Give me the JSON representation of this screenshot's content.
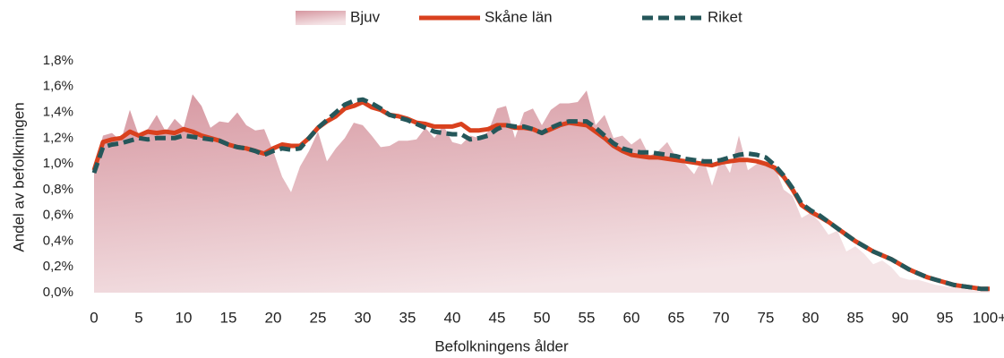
{
  "chart_data": {
    "type": "line",
    "x_label": "Befolkningens ålder",
    "y_label": "Andel av befolkningen",
    "x": [
      0,
      1,
      2,
      3,
      4,
      5,
      6,
      7,
      8,
      9,
      10,
      11,
      12,
      13,
      14,
      15,
      16,
      17,
      18,
      19,
      20,
      21,
      22,
      23,
      24,
      25,
      26,
      27,
      28,
      29,
      30,
      31,
      32,
      33,
      34,
      35,
      36,
      37,
      38,
      39,
      40,
      41,
      42,
      43,
      44,
      45,
      46,
      47,
      48,
      49,
      50,
      51,
      52,
      53,
      54,
      55,
      56,
      57,
      58,
      59,
      60,
      61,
      62,
      63,
      64,
      65,
      66,
      67,
      68,
      69,
      70,
      71,
      72,
      73,
      74,
      75,
      76,
      77,
      78,
      79,
      80,
      81,
      82,
      83,
      84,
      85,
      86,
      87,
      88,
      89,
      90,
      91,
      92,
      93,
      94,
      95,
      96,
      97,
      98,
      99,
      100
    ],
    "series": [
      {
        "name": "Bjuv",
        "style": "area",
        "color": "#d4919b",
        "values": [
          0.95,
          1.22,
          1.24,
          1.18,
          1.42,
          1.22,
          1.27,
          1.38,
          1.25,
          1.35,
          1.28,
          1.54,
          1.45,
          1.28,
          1.33,
          1.32,
          1.4,
          1.3,
          1.26,
          1.27,
          1.1,
          0.9,
          0.78,
          0.98,
          1.1,
          1.25,
          1.02,
          1.12,
          1.2,
          1.32,
          1.3,
          1.22,
          1.13,
          1.14,
          1.18,
          1.18,
          1.19,
          1.28,
          1.2,
          1.3,
          1.17,
          1.15,
          1.22,
          1.2,
          1.25,
          1.43,
          1.45,
          1.2,
          1.4,
          1.43,
          1.3,
          1.42,
          1.47,
          1.47,
          1.48,
          1.57,
          1.3,
          1.38,
          1.2,
          1.22,
          1.15,
          1.2,
          1.06,
          1.1,
          1.17,
          1.05,
          1.0,
          0.92,
          1.05,
          0.83,
          1.05,
          0.93,
          1.22,
          0.95,
          1.0,
          1.02,
          0.98,
          0.8,
          0.75,
          0.58,
          0.62,
          0.55,
          0.45,
          0.48,
          0.32,
          0.36,
          0.3,
          0.22,
          0.25,
          0.2,
          0.12,
          0.1,
          0.1,
          0.08,
          0.06,
          0.05,
          0.04,
          0.03,
          0.02,
          0.01,
          0.02
        ]
      },
      {
        "name": "Skåne län",
        "style": "solid",
        "color": "#d9411e",
        "values": [
          0.95,
          1.17,
          1.19,
          1.2,
          1.25,
          1.22,
          1.25,
          1.24,
          1.25,
          1.24,
          1.27,
          1.25,
          1.22,
          1.2,
          1.18,
          1.15,
          1.13,
          1.12,
          1.1,
          1.08,
          1.12,
          1.15,
          1.14,
          1.14,
          1.2,
          1.28,
          1.33,
          1.37,
          1.43,
          1.45,
          1.48,
          1.44,
          1.42,
          1.38,
          1.37,
          1.35,
          1.32,
          1.31,
          1.29,
          1.29,
          1.29,
          1.31,
          1.26,
          1.26,
          1.27,
          1.3,
          1.3,
          1.28,
          1.28,
          1.27,
          1.24,
          1.27,
          1.3,
          1.32,
          1.31,
          1.3,
          1.25,
          1.2,
          1.14,
          1.1,
          1.07,
          1.06,
          1.05,
          1.05,
          1.04,
          1.03,
          1.02,
          1.01,
          1.0,
          0.99,
          1.01,
          1.02,
          1.03,
          1.03,
          1.02,
          1.0,
          0.97,
          0.9,
          0.8,
          0.68,
          0.63,
          0.59,
          0.55,
          0.5,
          0.45,
          0.4,
          0.36,
          0.32,
          0.29,
          0.26,
          0.22,
          0.18,
          0.15,
          0.12,
          0.1,
          0.08,
          0.06,
          0.05,
          0.04,
          0.03,
          0.03
        ]
      },
      {
        "name": "Riket",
        "style": "dashed",
        "color": "#25575a",
        "values": [
          0.93,
          1.13,
          1.15,
          1.16,
          1.18,
          1.2,
          1.19,
          1.2,
          1.2,
          1.2,
          1.22,
          1.21,
          1.2,
          1.19,
          1.18,
          1.15,
          1.13,
          1.12,
          1.1,
          1.07,
          1.1,
          1.12,
          1.11,
          1.12,
          1.2,
          1.28,
          1.34,
          1.4,
          1.46,
          1.49,
          1.5,
          1.47,
          1.43,
          1.38,
          1.36,
          1.34,
          1.31,
          1.28,
          1.25,
          1.24,
          1.23,
          1.23,
          1.19,
          1.2,
          1.22,
          1.27,
          1.3,
          1.29,
          1.29,
          1.27,
          1.24,
          1.28,
          1.31,
          1.33,
          1.33,
          1.33,
          1.28,
          1.22,
          1.16,
          1.12,
          1.1,
          1.09,
          1.09,
          1.08,
          1.07,
          1.06,
          1.04,
          1.03,
          1.02,
          1.02,
          1.03,
          1.05,
          1.07,
          1.08,
          1.07,
          1.05,
          0.99,
          0.91,
          0.81,
          0.69,
          0.64,
          0.6,
          0.55,
          0.5,
          0.45,
          0.4,
          0.36,
          0.32,
          0.29,
          0.26,
          0.22,
          0.18,
          0.15,
          0.12,
          0.1,
          0.08,
          0.06,
          0.05,
          0.04,
          0.03,
          0.03
        ]
      }
    ],
    "xlim": [
      0,
      100
    ],
    "xticks": [
      0,
      5,
      10,
      15,
      20,
      25,
      30,
      35,
      40,
      45,
      50,
      55,
      60,
      65,
      70,
      75,
      80,
      85,
      90,
      95,
      {
        "value": 100,
        "label": "100+"
      }
    ],
    "ylim": [
      0,
      1.8
    ],
    "yticks": [
      {
        "value": 0,
        "label": "0,0%"
      },
      {
        "value": 0.2,
        "label": "0,2%"
      },
      {
        "value": 0.4,
        "label": "0,4%"
      },
      {
        "value": 0.6,
        "label": "0,6%"
      },
      {
        "value": 0.8,
        "label": "0,8%"
      },
      {
        "value": 1.0,
        "label": "1,0%"
      },
      {
        "value": 1.2,
        "label": "1,2%"
      },
      {
        "value": 1.4,
        "label": "1,4%"
      },
      {
        "value": 1.6,
        "label": "1,6%"
      },
      {
        "value": 1.8,
        "label": "1,8%"
      }
    ],
    "grid": false,
    "legend": "top"
  }
}
